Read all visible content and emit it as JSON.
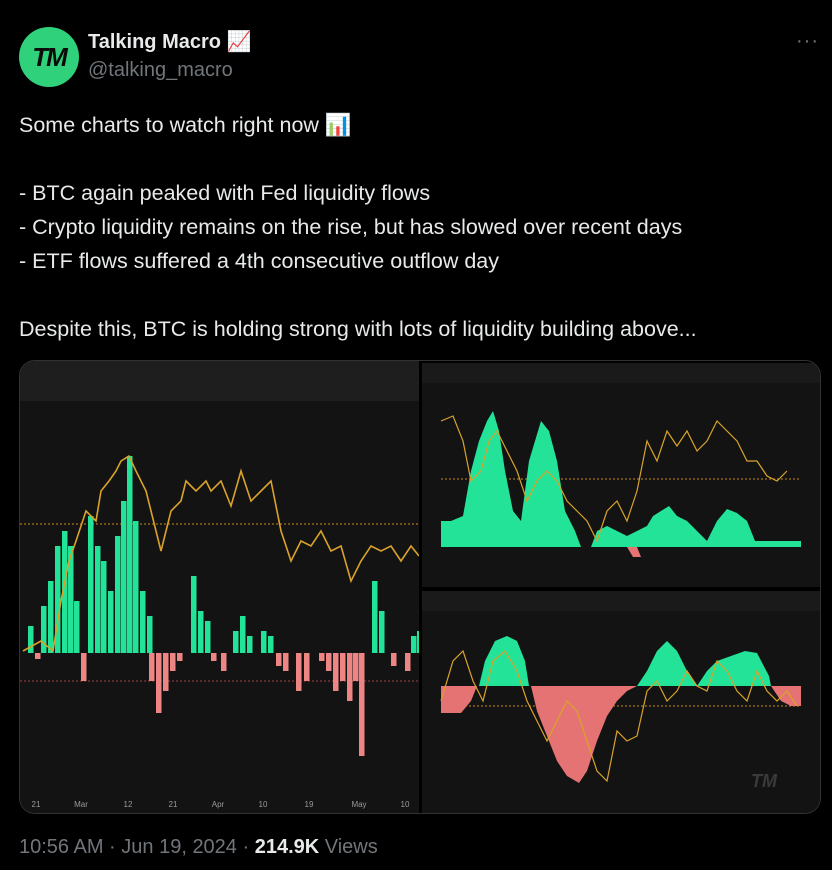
{
  "author": {
    "avatar": "TM",
    "name": "Talking Macro 📈",
    "handle": "@talking_macro"
  },
  "more": "···",
  "text": [
    "Some charts to watch right now 📊",
    "",
    "- BTC again peaked with Fed liquidity flows",
    "- Crypto liquidity remains on the rise, but has slowed over recent days",
    "- ETF flows suffered a 4th consecutive outflow day",
    "",
    "Despite this, BTC is holding strong with lots of liquidity building above..."
  ],
  "media": {
    "left_chart_x_labels": [
      "21",
      "Mar",
      "12",
      "21",
      "Apr",
      "10",
      "19",
      "May",
      "10"
    ],
    "watermark": "TM"
  },
  "footer": {
    "time": "10:56 AM · Jun 19, 2024 · ",
    "views_count": "214.9K",
    "views_label": " Views"
  }
}
